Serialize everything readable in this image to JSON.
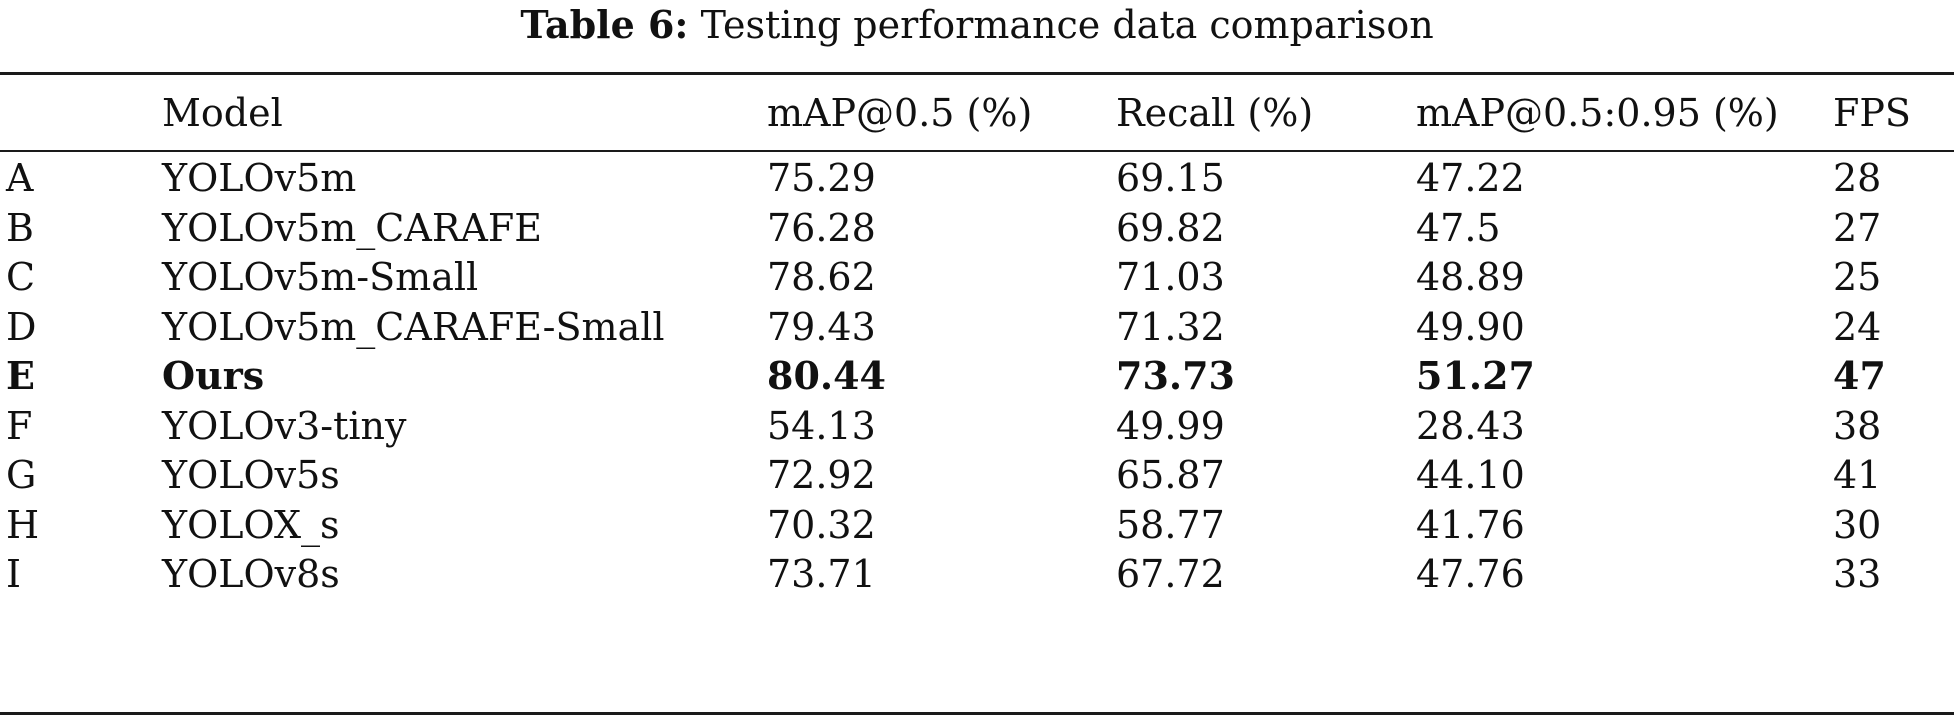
{
  "caption": {
    "label": "Table 6:",
    "text": "Testing performance data comparison"
  },
  "table": {
    "headers": {
      "id": "",
      "model": "Model",
      "map50": "mAP@0.5 (%)",
      "recall": "Recall (%)",
      "map5095": "mAP@0.5:0.95 (%)",
      "fps": "FPS"
    },
    "rows": [
      {
        "id": "A",
        "model": "YOLOv5m",
        "map50": "75.29",
        "recall": "69.15",
        "map5095": "47.22",
        "fps": "28",
        "bold": false
      },
      {
        "id": "B",
        "model": "YOLOv5m_CARAFE",
        "map50": "76.28",
        "recall": "69.82",
        "map5095": "47.5",
        "fps": "27",
        "bold": false
      },
      {
        "id": "C",
        "model": "YOLOv5m-Small",
        "map50": "78.62",
        "recall": "71.03",
        "map5095": "48.89",
        "fps": "25",
        "bold": false
      },
      {
        "id": "D",
        "model": "YOLOv5m_CARAFE-Small",
        "map50": "79.43",
        "recall": "71.32",
        "map5095": "49.90",
        "fps": "24",
        "bold": false
      },
      {
        "id": "E",
        "model": "Ours",
        "map50": "80.44",
        "recall": "73.73",
        "map5095": "51.27",
        "fps": "47",
        "bold": true
      },
      {
        "id": "F",
        "model": "YOLOv3-tiny",
        "map50": "54.13",
        "recall": "49.99",
        "map5095": "28.43",
        "fps": "38",
        "bold": false
      },
      {
        "id": "G",
        "model": "YOLOv5s",
        "map50": "72.92",
        "recall": "65.87",
        "map5095": "44.10",
        "fps": "41",
        "bold": false
      },
      {
        "id": "H",
        "model": "YOLOX_s",
        "map50": "70.32",
        "recall": "58.77",
        "map5095": "41.76",
        "fps": "30",
        "bold": false
      },
      {
        "id": "I",
        "model": "YOLOv8s",
        "map50": "73.71",
        "recall": "67.72",
        "map5095": "47.76",
        "fps": "33",
        "bold": false
      }
    ]
  }
}
